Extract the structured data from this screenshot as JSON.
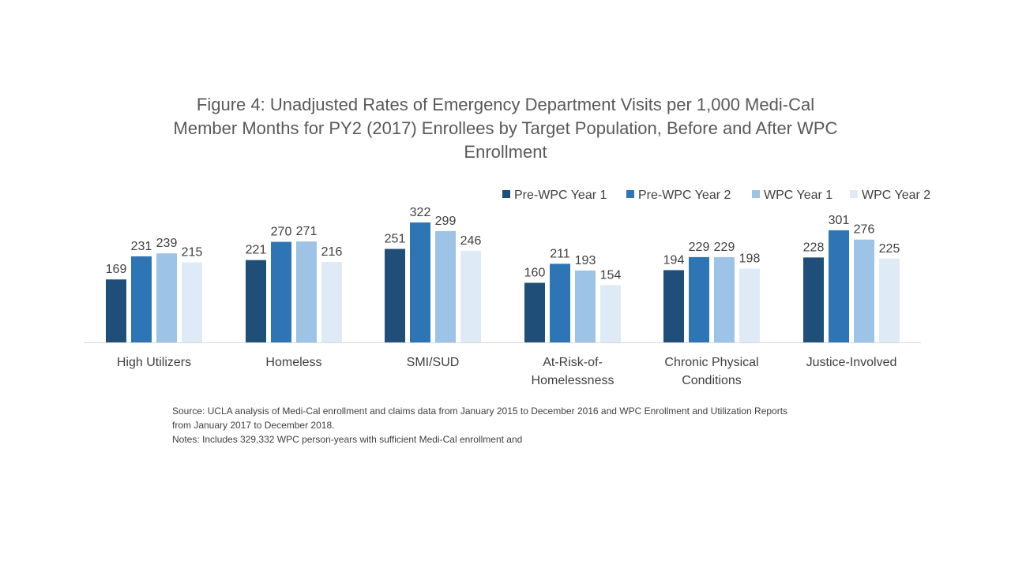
{
  "title_lines": [
    "Figure 4: Unadjusted Rates of Emergency Department Visits per 1,000 Medi-Cal",
    "Member Months for PY2 (2017) Enrollees by Target Population, Before and After WPC",
    "Enrollment"
  ],
  "source_lines": [
    "Source: UCLA analysis of Medi-Cal enrollment and claims data from January 2015  to December 2016 and WPC Enrollment and Utilization Reports",
    "from January 2017  to December 2018.",
    "Notes: Includes 329,332 WPC person-years with sufficient Medi-Cal enrollment and"
  ],
  "chart_data": {
    "type": "bar",
    "title": "Figure 4: Unadjusted Rates of Emergency Department Visits per 1,000 Medi-Cal Member Months for PY2 (2017) Enrollees by Target Population, Before and After WPC Enrollment",
    "categories": [
      [
        "High Utilizers"
      ],
      [
        "Homeless"
      ],
      [
        "SMI/SUD"
      ],
      [
        "At-Risk-of-",
        "Homelessness"
      ],
      [
        "Chronic Physical",
        "Conditions"
      ],
      [
        "Justice-Involved"
      ]
    ],
    "series": [
      {
        "name": "Pre-WPC Year 1",
        "color": "#1f4e79",
        "values": [
          169,
          221,
          251,
          160,
          194,
          228
        ]
      },
      {
        "name": "Pre-WPC Year 2",
        "color": "#2e75b6",
        "values": [
          231,
          270,
          322,
          211,
          229,
          301
        ]
      },
      {
        "name": "WPC Year 1",
        "color": "#9dc3e6",
        "values": [
          239,
          271,
          299,
          193,
          229,
          276
        ]
      },
      {
        "name": "WPC Year 2",
        "color": "#deebf7",
        "values": [
          215,
          216,
          246,
          154,
          198,
          225
        ]
      }
    ],
    "ylim": [
      0,
      330
    ],
    "grid": false,
    "legend": "top-right",
    "data_labels": true
  }
}
